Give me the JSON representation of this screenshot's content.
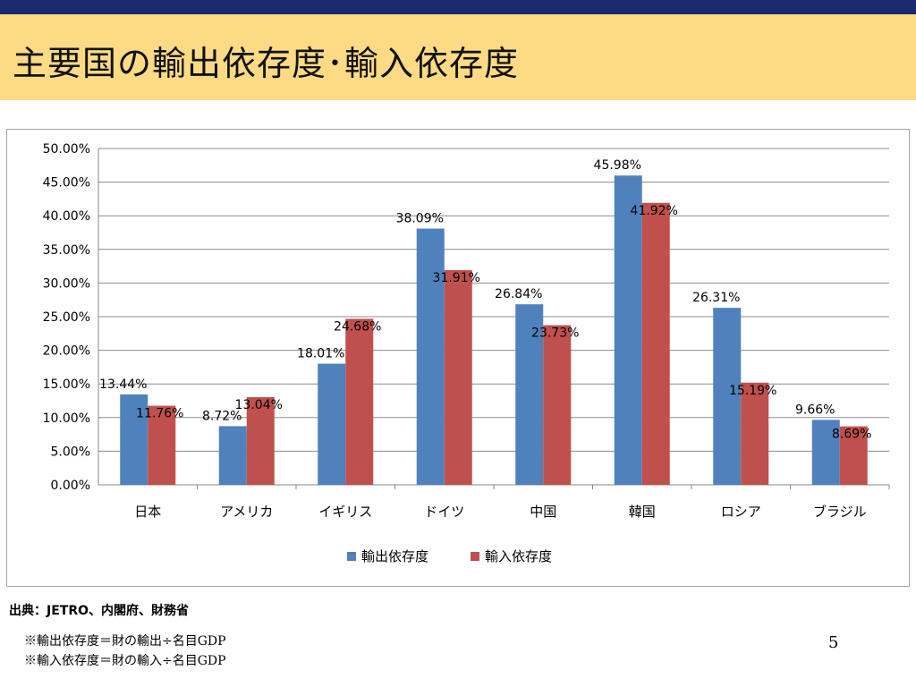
{
  "title": "主要国の輸出依存度･輸入依存度",
  "source": "出典：JETRO、内閣府、財務省",
  "notes": [
    "※輸出依存度＝財の輸出÷名目GDP",
    "※輸入依存度＝財の輸入÷名目GDP"
  ],
  "page_number": "5",
  "colors": {
    "export": "#4f81bd",
    "import": "#c0504d",
    "topbar": "#1a2a6e",
    "titlebar": "#fddb84"
  },
  "chart_data": {
    "type": "bar",
    "categories": [
      "日本",
      "アメリカ",
      "イギリス",
      "ドイツ",
      "中国",
      "韓国",
      "ロシア",
      "ブラジル"
    ],
    "series": [
      {
        "name": "輸出依存度",
        "values": [
          13.44,
          8.72,
          18.01,
          38.09,
          26.84,
          45.98,
          26.31,
          9.66
        ],
        "labels": [
          "13.44%",
          "8.72%",
          "18.01%",
          "38.09%",
          "26.84%",
          "45.98%",
          "26.31%",
          "9.66%"
        ]
      },
      {
        "name": "輸入依存度",
        "values": [
          11.76,
          13.04,
          24.68,
          31.91,
          23.73,
          41.92,
          15.19,
          8.69
        ],
        "labels": [
          "11.76%",
          "13.04%",
          "24.68%",
          "31.91%",
          "23.73%",
          "41.92%",
          "15.19%",
          "8.69%"
        ]
      }
    ],
    "yticks": [
      "0.00%",
      "5.00%",
      "10.00%",
      "15.00%",
      "20.00%",
      "25.00%",
      "30.00%",
      "35.00%",
      "40.00%",
      "45.00%",
      "50.00%"
    ],
    "ylim": [
      0,
      50
    ],
    "grid": true,
    "legend": "bottom"
  }
}
